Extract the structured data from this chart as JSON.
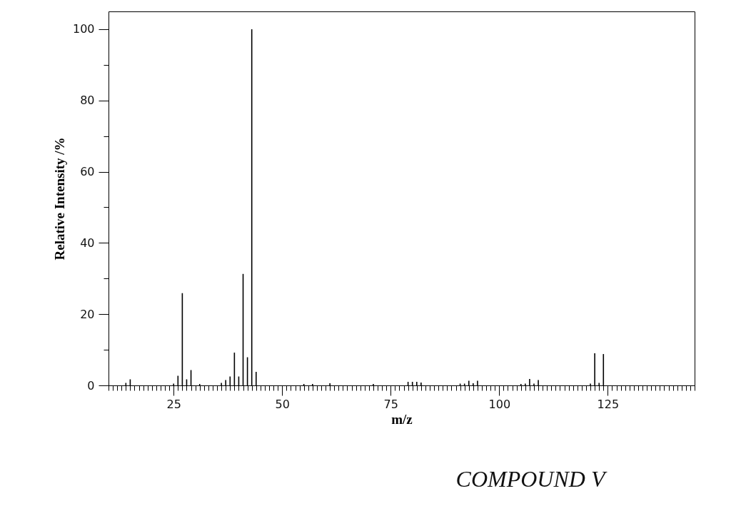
{
  "chart_data": {
    "type": "bar",
    "xlabel": "m/z",
    "ylabel": "Relative Intensity /%",
    "x": [
      14,
      15,
      25,
      26,
      27,
      28,
      29,
      31,
      36,
      37,
      38,
      39,
      40,
      41,
      42,
      43,
      44,
      55,
      57,
      61,
      71,
      79,
      80,
      81,
      82,
      91,
      92,
      93,
      94,
      95,
      105,
      106,
      107,
      108,
      109,
      121,
      122,
      123,
      124
    ],
    "values": [
      0.7,
      1.7,
      0.5,
      2.7,
      25.9,
      1.7,
      4.3,
      0.4,
      0.7,
      1.5,
      2.5,
      9.2,
      2.5,
      31.3,
      7.9,
      100,
      3.8,
      0.4,
      0.4,
      0.6,
      0.4,
      1.0,
      1.0,
      1.0,
      0.8,
      0.5,
      0.5,
      1.3,
      0.6,
      1.3,
      0.4,
      0.5,
      1.8,
      0.5,
      1.5,
      0.5,
      9.0,
      0.7,
      8.8
    ],
    "color": "#000000",
    "xlim": [
      10,
      145
    ],
    "ylim": [
      0,
      105
    ],
    "xticks": [
      {
        "value": 10,
        "label": null
      },
      {
        "value": 11,
        "label": null
      },
      {
        "value": 12,
        "label": null
      },
      {
        "value": 13,
        "label": null
      },
      {
        "value": 14,
        "label": null
      },
      {
        "value": 15,
        "label": null
      },
      {
        "value": 16,
        "label": null
      },
      {
        "value": 17,
        "label": null
      },
      {
        "value": 18,
        "label": null
      },
      {
        "value": 19,
        "label": null
      },
      {
        "value": 20,
        "label": null
      },
      {
        "value": 21,
        "label": null
      },
      {
        "value": 22,
        "label": null
      },
      {
        "value": 23,
        "label": null
      },
      {
        "value": 24,
        "label": null
      },
      25,
      {
        "value": 26,
        "label": null
      },
      {
        "value": 27,
        "label": null
      },
      {
        "value": 28,
        "label": null
      },
      {
        "value": 29,
        "label": null
      },
      {
        "value": 30,
        "label": null
      },
      {
        "value": 31,
        "label": null
      },
      {
        "value": 32,
        "label": null
      },
      {
        "value": 33,
        "label": null
      },
      {
        "value": 34,
        "label": null
      },
      {
        "value": 35,
        "label": null
      },
      {
        "value": 36,
        "label": null
      },
      {
        "value": 37,
        "label": null
      },
      {
        "value": 38,
        "label": null
      },
      {
        "value": 39,
        "label": null
      },
      {
        "value": 40,
        "label": null
      },
      {
        "value": 41,
        "label": null
      },
      {
        "value": 42,
        "label": null
      },
      {
        "value": 43,
        "label": null
      },
      {
        "value": 44,
        "label": null
      },
      {
        "value": 45,
        "label": null
      },
      {
        "value": 46,
        "label": null
      },
      {
        "value": 47,
        "label": null
      },
      {
        "value": 48,
        "label": null
      },
      {
        "value": 49,
        "label": null
      },
      50,
      {
        "value": 51,
        "label": null
      },
      {
        "value": 52,
        "label": null
      },
      {
        "value": 53,
        "label": null
      },
      {
        "value": 54,
        "label": null
      },
      {
        "value": 55,
        "label": null
      },
      {
        "value": 56,
        "label": null
      },
      {
        "value": 57,
        "label": null
      },
      {
        "value": 58,
        "label": null
      },
      {
        "value": 59,
        "label": null
      },
      {
        "value": 60,
        "label": null
      },
      {
        "value": 61,
        "label": null
      },
      {
        "value": 62,
        "label": null
      },
      {
        "value": 63,
        "label": null
      },
      {
        "value": 64,
        "label": null
      },
      {
        "value": 65,
        "label": null
      },
      {
        "value": 66,
        "label": null
      },
      {
        "value": 67,
        "label": null
      },
      {
        "value": 68,
        "label": null
      },
      {
        "value": 69,
        "label": null
      },
      {
        "value": 70,
        "label": null
      },
      {
        "value": 71,
        "label": null
      },
      {
        "value": 72,
        "label": null
      },
      {
        "value": 73,
        "label": null
      },
      {
        "value": 74,
        "label": null
      },
      75,
      {
        "value": 76,
        "label": null
      },
      {
        "value": 77,
        "label": null
      },
      {
        "value": 78,
        "label": null
      },
      {
        "value": 79,
        "label": null
      },
      {
        "value": 80,
        "label": null
      },
      {
        "value": 81,
        "label": null
      },
      {
        "value": 82,
        "label": null
      },
      {
        "value": 83,
        "label": null
      },
      {
        "value": 84,
        "label": null
      },
      {
        "value": 85,
        "label": null
      },
      {
        "value": 86,
        "label": null
      },
      {
        "value": 87,
        "label": null
      },
      {
        "value": 88,
        "label": null
      },
      {
        "value": 89,
        "label": null
      },
      {
        "value": 90,
        "label": null
      },
      {
        "value": 91,
        "label": null
      },
      {
        "value": 92,
        "label": null
      },
      {
        "value": 93,
        "label": null
      },
      {
        "value": 94,
        "label": null
      },
      {
        "value": 95,
        "label": null
      },
      {
        "value": 96,
        "label": null
      },
      {
        "value": 97,
        "label": null
      },
      {
        "value": 98,
        "label": null
      },
      {
        "value": 99,
        "label": null
      },
      100,
      {
        "value": 101,
        "label": null
      },
      {
        "value": 102,
        "label": null
      },
      {
        "value": 103,
        "label": null
      },
      {
        "value": 104,
        "label": null
      },
      {
        "value": 105,
        "label": null
      },
      {
        "value": 106,
        "label": null
      },
      {
        "value": 107,
        "label": null
      },
      {
        "value": 108,
        "label": null
      },
      {
        "value": 109,
        "label": null
      },
      {
        "value": 110,
        "label": null
      },
      {
        "value": 111,
        "label": null
      },
      {
        "value": 112,
        "label": null
      },
      {
        "value": 113,
        "label": null
      },
      {
        "value": 114,
        "label": null
      },
      {
        "value": 115,
        "label": null
      },
      {
        "value": 116,
        "label": null
      },
      {
        "value": 117,
        "label": null
      },
      {
        "value": 118,
        "label": null
      },
      {
        "value": 119,
        "label": null
      },
      {
        "value": 120,
        "label": null
      },
      {
        "value": 121,
        "label": null
      },
      {
        "value": 122,
        "label": null
      },
      {
        "value": 123,
        "label": null
      },
      {
        "value": 124,
        "label": null
      },
      125,
      {
        "value": 126,
        "label": null
      },
      {
        "value": 127,
        "label": null
      },
      {
        "value": 128,
        "label": null
      },
      {
        "value": 129,
        "label": null
      },
      {
        "value": 130,
        "label": null
      },
      {
        "value": 131,
        "label": null
      },
      {
        "value": 132,
        "label": null
      },
      {
        "value": 133,
        "label": null
      },
      {
        "value": 134,
        "label": null
      },
      {
        "value": 135,
        "label": null
      },
      {
        "value": 136,
        "label": null
      },
      {
        "value": 137,
        "label": null
      },
      {
        "value": 138,
        "label": null
      },
      {
        "value": 139,
        "label": null
      },
      {
        "value": 140,
        "label": null
      },
      {
        "value": 141,
        "label": null
      },
      {
        "value": 142,
        "label": null
      },
      {
        "value": 143,
        "label": null
      },
      {
        "value": 144,
        "label": null
      },
      {
        "value": 145,
        "label": null
      }
    ],
    "yticks": [
      0,
      {
        "value": 10,
        "label": null
      },
      20,
      {
        "value": 30,
        "label": null
      },
      40,
      {
        "value": 50,
        "label": null
      },
      60,
      {
        "value": 70,
        "label": null
      },
      80,
      {
        "value": 90,
        "label": null
      },
      100
    ],
    "annotations": [
      "COMPOUND V"
    ]
  }
}
